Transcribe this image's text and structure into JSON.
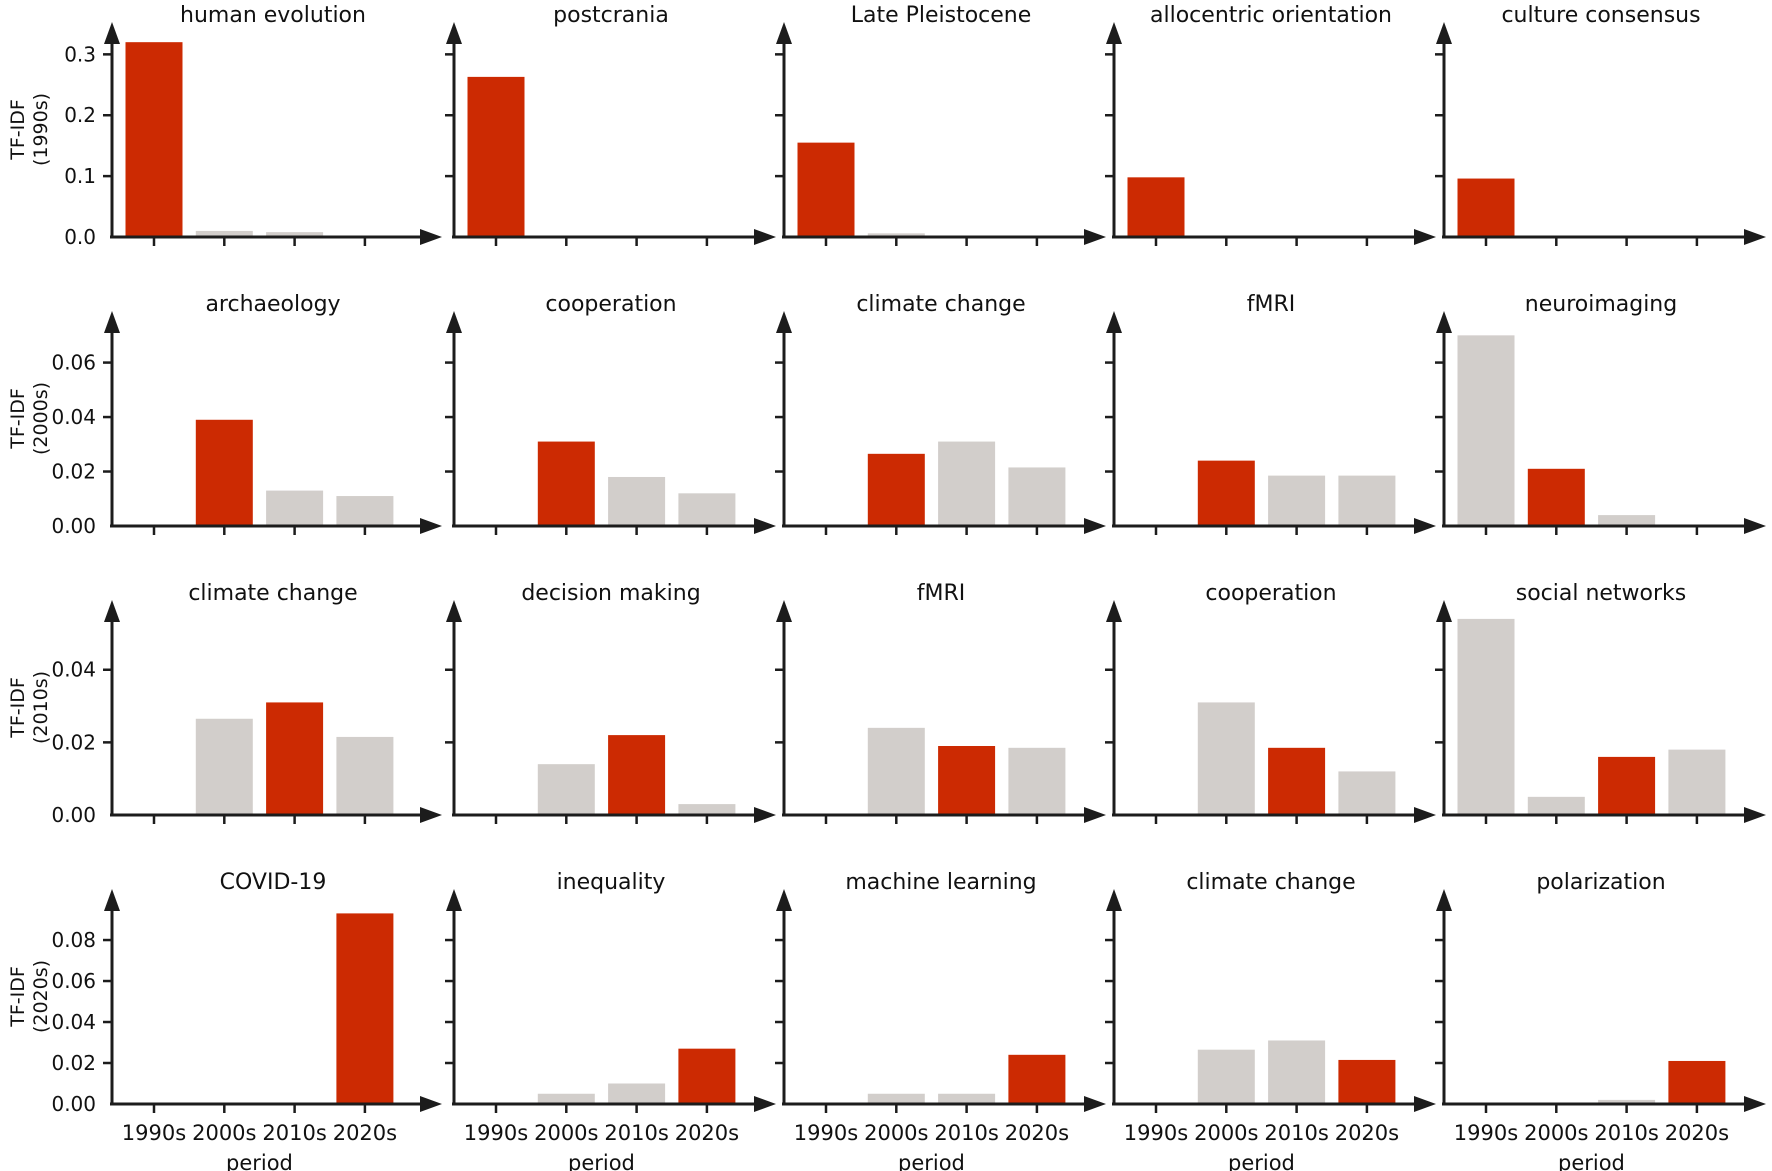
{
  "figure": {
    "x_categories": [
      "1990s",
      "2000s",
      "2010s",
      "2020s"
    ],
    "x_axis_label": "period",
    "colors": {
      "highlight_red": "#cc2a02",
      "muted_gray": "#d2cecb",
      "axis_black": "#1c1c1c",
      "text_black": "#111111"
    },
    "rows": [
      {
        "ylabel_line1": "TF-IDF",
        "ylabel_line2": "(1990s)",
        "zero_label": "0.0",
        "yticks": [
          0.1,
          0.2,
          0.3
        ],
        "tick_decimals": 1,
        "axis_top_value": 0.34,
        "highlight_period": "1990s",
        "highlight_index": 0
      },
      {
        "ylabel_line1": "TF-IDF",
        "ylabel_line2": "(2000s)",
        "zero_label": "0.00",
        "yticks": [
          0.02,
          0.04,
          0.06
        ],
        "tick_decimals": 2,
        "axis_top_value": 0.076,
        "highlight_period": "2000s",
        "highlight_index": 1
      },
      {
        "ylabel_line1": "TF-IDF",
        "ylabel_line2": "(2010s)",
        "zero_label": "0.00",
        "yticks": [
          0.02,
          0.04
        ],
        "tick_decimals": 2,
        "axis_top_value": 0.057,
        "highlight_period": "2010s",
        "highlight_index": 2
      },
      {
        "ylabel_line1": "TF-IDF",
        "ylabel_line2": "(2020s)",
        "zero_label": "0.00",
        "yticks": [
          0.02,
          0.04,
          0.06,
          0.08
        ],
        "tick_decimals": 2,
        "axis_top_value": 0.101,
        "highlight_period": "2020s",
        "highlight_index": 3
      }
    ]
  },
  "chart_data": [
    {
      "type": "bar",
      "row": 0,
      "col": 0,
      "title": "human evolution",
      "ylabel": "TF-IDF (1990s)",
      "categories": [
        "1990s",
        "2000s",
        "2010s",
        "2020s"
      ],
      "values": [
        0.32,
        0.01,
        0.008,
        0
      ],
      "highlight_index": 0,
      "ylim": [
        0,
        0.34
      ]
    },
    {
      "type": "bar",
      "row": 0,
      "col": 1,
      "title": "postcrania",
      "ylabel": "TF-IDF (1990s)",
      "categories": [
        "1990s",
        "2000s",
        "2010s",
        "2020s"
      ],
      "values": [
        0.263,
        0,
        0,
        0
      ],
      "highlight_index": 0,
      "ylim": [
        0,
        0.34
      ]
    },
    {
      "type": "bar",
      "row": 0,
      "col": 2,
      "title": "Late Pleistocene",
      "ylabel": "TF-IDF (1990s)",
      "categories": [
        "1990s",
        "2000s",
        "2010s",
        "2020s"
      ],
      "values": [
        0.155,
        0.006,
        0,
        0
      ],
      "highlight_index": 0,
      "ylim": [
        0,
        0.34
      ]
    },
    {
      "type": "bar",
      "row": 0,
      "col": 3,
      "title": "allocentric orientation",
      "ylabel": "TF-IDF (1990s)",
      "categories": [
        "1990s",
        "2000s",
        "2010s",
        "2020s"
      ],
      "values": [
        0.098,
        0,
        0,
        0
      ],
      "highlight_index": 0,
      "ylim": [
        0,
        0.34
      ]
    },
    {
      "type": "bar",
      "row": 0,
      "col": 4,
      "title": "culture consensus",
      "ylabel": "TF-IDF (1990s)",
      "categories": [
        "1990s",
        "2000s",
        "2010s",
        "2020s"
      ],
      "values": [
        0.096,
        0,
        0,
        0
      ],
      "highlight_index": 0,
      "ylim": [
        0,
        0.34
      ]
    },
    {
      "type": "bar",
      "row": 1,
      "col": 0,
      "title": "archaeology",
      "ylabel": "TF-IDF (2000s)",
      "categories": [
        "1990s",
        "2000s",
        "2010s",
        "2020s"
      ],
      "values": [
        0,
        0.039,
        0.013,
        0.011
      ],
      "highlight_index": 1,
      "ylim": [
        0,
        0.076
      ]
    },
    {
      "type": "bar",
      "row": 1,
      "col": 1,
      "title": "cooperation",
      "ylabel": "TF-IDF (2000s)",
      "categories": [
        "1990s",
        "2000s",
        "2010s",
        "2020s"
      ],
      "values": [
        0,
        0.031,
        0.018,
        0.012
      ],
      "highlight_index": 1,
      "ylim": [
        0,
        0.076
      ]
    },
    {
      "type": "bar",
      "row": 1,
      "col": 2,
      "title": "climate change",
      "ylabel": "TF-IDF (2000s)",
      "categories": [
        "1990s",
        "2000s",
        "2010s",
        "2020s"
      ],
      "values": [
        0,
        0.0265,
        0.031,
        0.0215
      ],
      "highlight_index": 1,
      "ylim": [
        0,
        0.076
      ]
    },
    {
      "type": "bar",
      "row": 1,
      "col": 3,
      "title": "fMRI",
      "ylabel": "TF-IDF (2000s)",
      "categories": [
        "1990s",
        "2000s",
        "2010s",
        "2020s"
      ],
      "values": [
        0,
        0.024,
        0.0185,
        0.0185
      ],
      "highlight_index": 1,
      "ylim": [
        0,
        0.076
      ]
    },
    {
      "type": "bar",
      "row": 1,
      "col": 4,
      "title": "neuroimaging",
      "ylabel": "TF-IDF (2000s)",
      "categories": [
        "1990s",
        "2000s",
        "2010s",
        "2020s"
      ],
      "values": [
        0.07,
        0.021,
        0.004,
        0
      ],
      "highlight_index": 1,
      "ylim": [
        0,
        0.076
      ]
    },
    {
      "type": "bar",
      "row": 2,
      "col": 0,
      "title": "climate change",
      "ylabel": "TF-IDF (2010s)",
      "categories": [
        "1990s",
        "2000s",
        "2010s",
        "2020s"
      ],
      "values": [
        0,
        0.0265,
        0.031,
        0.0215
      ],
      "highlight_index": 2,
      "ylim": [
        0,
        0.057
      ]
    },
    {
      "type": "bar",
      "row": 2,
      "col": 1,
      "title": "decision making",
      "ylabel": "TF-IDF (2010s)",
      "categories": [
        "1990s",
        "2000s",
        "2010s",
        "2020s"
      ],
      "values": [
        0,
        0.014,
        0.022,
        0.003
      ],
      "highlight_index": 2,
      "ylim": [
        0,
        0.057
      ]
    },
    {
      "type": "bar",
      "row": 2,
      "col": 2,
      "title": "fMRI",
      "ylabel": "TF-IDF (2010s)",
      "categories": [
        "1990s",
        "2000s",
        "2010s",
        "2020s"
      ],
      "values": [
        0,
        0.024,
        0.019,
        0.0185
      ],
      "highlight_index": 2,
      "ylim": [
        0,
        0.057
      ]
    },
    {
      "type": "bar",
      "row": 2,
      "col": 3,
      "title": "cooperation",
      "ylabel": "TF-IDF (2010s)",
      "categories": [
        "1990s",
        "2000s",
        "2010s",
        "2020s"
      ],
      "values": [
        0,
        0.031,
        0.0185,
        0.012
      ],
      "highlight_index": 2,
      "ylim": [
        0,
        0.057
      ]
    },
    {
      "type": "bar",
      "row": 2,
      "col": 4,
      "title": "social networks",
      "ylabel": "TF-IDF (2010s)",
      "categories": [
        "1990s",
        "2000s",
        "2010s",
        "2020s"
      ],
      "values": [
        0.054,
        0.005,
        0.016,
        0.018
      ],
      "highlight_index": 2,
      "ylim": [
        0,
        0.057
      ]
    },
    {
      "type": "bar",
      "row": 3,
      "col": 0,
      "title": "COVID-19",
      "ylabel": "TF-IDF (2020s)",
      "categories": [
        "1990s",
        "2000s",
        "2010s",
        "2020s"
      ],
      "values": [
        0,
        0,
        0,
        0.093
      ],
      "highlight_index": 3,
      "ylim": [
        0,
        0.101
      ]
    },
    {
      "type": "bar",
      "row": 3,
      "col": 1,
      "title": "inequality",
      "ylabel": "TF-IDF (2020s)",
      "categories": [
        "1990s",
        "2000s",
        "2010s",
        "2020s"
      ],
      "values": [
        0,
        0.005,
        0.01,
        0.027
      ],
      "highlight_index": 3,
      "ylim": [
        0,
        0.101
      ]
    },
    {
      "type": "bar",
      "row": 3,
      "col": 2,
      "title": "machine learning",
      "ylabel": "TF-IDF (2020s)",
      "categories": [
        "1990s",
        "2000s",
        "2010s",
        "2020s"
      ],
      "values": [
        0,
        0.005,
        0.005,
        0.024
      ],
      "highlight_index": 3,
      "ylim": [
        0,
        0.101
      ]
    },
    {
      "type": "bar",
      "row": 3,
      "col": 3,
      "title": "climate change",
      "ylabel": "TF-IDF (2020s)",
      "categories": [
        "1990s",
        "2000s",
        "2010s",
        "2020s"
      ],
      "values": [
        0,
        0.0265,
        0.031,
        0.0215
      ],
      "highlight_index": 3,
      "ylim": [
        0,
        0.101
      ]
    },
    {
      "type": "bar",
      "row": 3,
      "col": 4,
      "title": "polarization",
      "ylabel": "TF-IDF (2020s)",
      "categories": [
        "1990s",
        "2000s",
        "2010s",
        "2020s"
      ],
      "values": [
        0,
        0,
        0.002,
        0.021
      ],
      "highlight_index": 3,
      "ylim": [
        0,
        0.101
      ]
    }
  ]
}
